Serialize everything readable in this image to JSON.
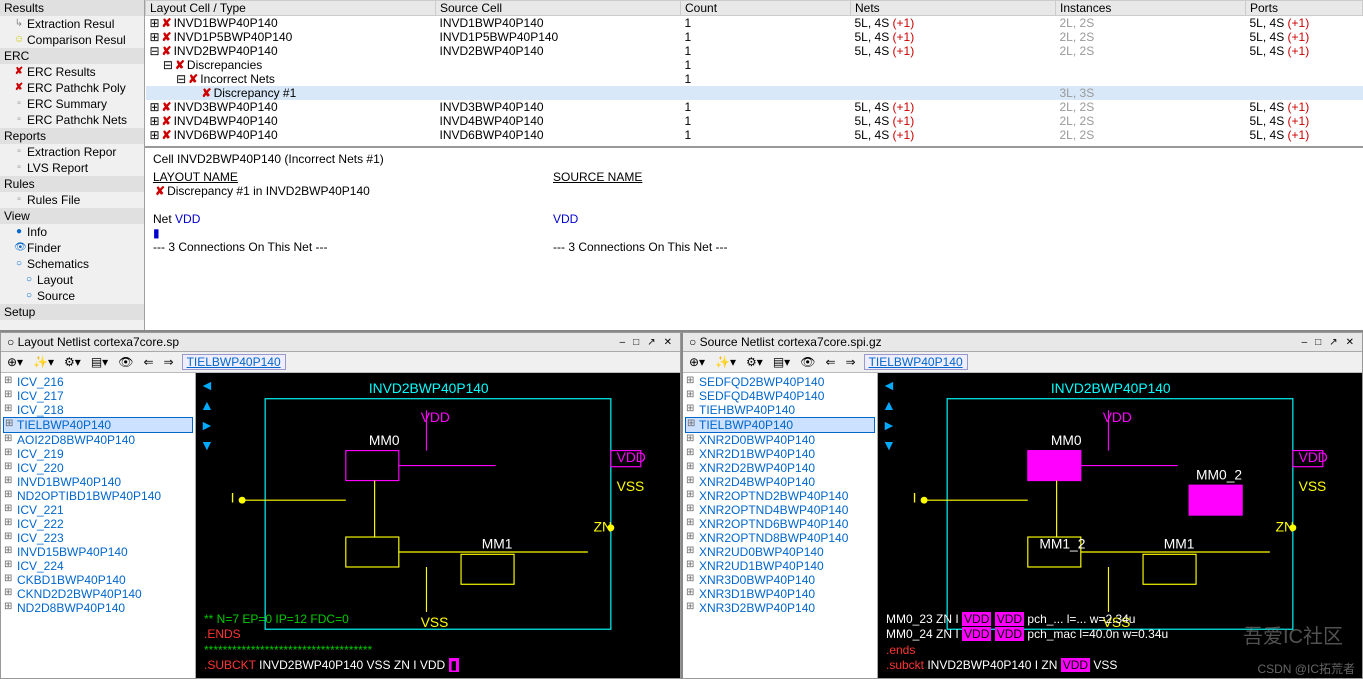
{
  "sidebar": {
    "sections": [
      {
        "label": "Results",
        "items": [
          {
            "icon": "↳",
            "cls": "gray",
            "label": "Extraction Resul"
          },
          {
            "icon": "☺",
            "cls": "yellow",
            "label": "Comparison Resul"
          }
        ]
      },
      {
        "label": "ERC",
        "items": [
          {
            "icon": "✘",
            "cls": "red",
            "label": "ERC Results"
          },
          {
            "icon": "✘",
            "cls": "red",
            "label": "ERC Pathchk Poly"
          },
          {
            "icon": "▫",
            "cls": "gray",
            "label": "ERC Summary"
          },
          {
            "icon": "▫",
            "cls": "gray",
            "label": "ERC Pathchk Nets"
          }
        ]
      },
      {
        "label": "Reports",
        "items": [
          {
            "icon": "▫",
            "cls": "gray",
            "label": "Extraction Repor"
          },
          {
            "icon": "▫",
            "cls": "gray",
            "label": "LVS Report"
          }
        ]
      },
      {
        "label": "Rules",
        "items": [
          {
            "icon": "▫",
            "cls": "gray",
            "label": "Rules File"
          }
        ]
      },
      {
        "label": "View",
        "items": [
          {
            "icon": "●",
            "cls": "blue",
            "label": "Info"
          },
          {
            "icon": "👁",
            "cls": "blue",
            "label": "Finder"
          },
          {
            "icon": "○",
            "cls": "blue",
            "label": "Schematics",
            "sub": [
              {
                "icon": "○",
                "cls": "blue",
                "label": "Layout"
              },
              {
                "icon": "○",
                "cls": "blue",
                "label": "Source"
              }
            ]
          }
        ]
      },
      {
        "label": "Setup",
        "items": []
      }
    ]
  },
  "table": {
    "cols": [
      "Layout Cell / Type",
      "Source Cell",
      "Count",
      "Nets",
      "Instances",
      "Ports"
    ],
    "widths": [
      "290px",
      "245px",
      "170px",
      "205px",
      "190px",
      "auto"
    ],
    "rows": [
      {
        "ind": 0,
        "exp": "⊞",
        "mark": "✘",
        "c0": "INVD1BWP40P140",
        "c1": "INVD1BWP40P140",
        "c2": "1",
        "nets": "5L, 4S",
        "np": "(+1)",
        "inst": "2L, 2S",
        "ip": "",
        "ports": "5L, 4S",
        "pp": "(+1)"
      },
      {
        "ind": 0,
        "exp": "⊞",
        "mark": "✘",
        "c0": "INVD1P5BWP40P140",
        "c1": "INVD1P5BWP40P140",
        "c2": "1",
        "nets": "5L, 4S",
        "np": "(+1)",
        "inst": "2L, 2S",
        "ip": "",
        "ports": "5L, 4S",
        "pp": "(+1)"
      },
      {
        "ind": 0,
        "exp": "⊟",
        "mark": "✘",
        "c0": "INVD2BWP40P140",
        "c1": "INVD2BWP40P140",
        "c2": "1",
        "nets": "5L, 4S",
        "np": "(+1)",
        "inst": "2L, 2S",
        "ip": "",
        "ports": "5L, 4S",
        "pp": "(+1)"
      },
      {
        "ind": 1,
        "exp": "⊟",
        "mark": "✘",
        "c0": "Discrepancies",
        "c1": "",
        "c2": "1",
        "nets": "",
        "np": "",
        "inst": "",
        "ip": "",
        "ports": "",
        "pp": ""
      },
      {
        "ind": 2,
        "exp": "⊟",
        "mark": "✘",
        "c0": "Incorrect Nets",
        "c1": "",
        "c2": "1",
        "nets": "",
        "np": "",
        "inst": "",
        "ip": "",
        "ports": "",
        "pp": ""
      },
      {
        "ind": 3,
        "exp": "",
        "mark": "✘",
        "c0": "Discrepancy #1",
        "c1": "",
        "c2": "",
        "nets": "",
        "np": "",
        "inst": "3L, 3S",
        "ip": "",
        "ports": "",
        "pp": "",
        "sel": true
      },
      {
        "ind": 0,
        "exp": "⊞",
        "mark": "✘",
        "c0": "INVD3BWP40P140",
        "c1": "INVD3BWP40P140",
        "c2": "1",
        "nets": "5L, 4S",
        "np": "(+1)",
        "inst": "2L, 2S",
        "ip": "",
        "ports": "5L, 4S",
        "pp": "(+1)"
      },
      {
        "ind": 0,
        "exp": "⊞",
        "mark": "✘",
        "c0": "INVD4BWP40P140",
        "c1": "INVD4BWP40P140",
        "c2": "1",
        "nets": "5L, 4S",
        "np": "(+1)",
        "inst": "2L, 2S",
        "ip": "",
        "ports": "5L, 4S",
        "pp": "(+1)"
      },
      {
        "ind": 0,
        "exp": "⊞",
        "mark": "✘",
        "c0": "INVD6BWP40P140",
        "c1": "INVD6BWP40P140",
        "c2": "1",
        "nets": "5L, 4S",
        "np": "(+1)",
        "inst": "2L, 2S",
        "ip": "",
        "ports": "5L, 4S",
        "pp": "(+1)"
      }
    ]
  },
  "detail": {
    "header": "Cell INVD2BWP40P140 (Incorrect Nets #1)",
    "left_label": "LAYOUT NAME",
    "right_label": "SOURCE NAME",
    "disc_line": "Discrepancy #1 in INVD2BWP40P140",
    "net_label": "Net",
    "net_name": "VDD",
    "conn_left": "--- 3 Connections On This Net ---",
    "conn_right": "--- 3 Connections On This Net ---"
  },
  "panes": {
    "left": {
      "title": "Layout Netlist cortexa7core.sp",
      "cell": "TIELBWP40P140",
      "tree": [
        "ICV_216",
        "ICV_217",
        "ICV_218",
        "TIELBWP40P140",
        "AOI22D8BWP40P140",
        "ICV_219",
        "ICV_220",
        "INVD1BWP40P140",
        "ND2OPTIBD1BWP40P140",
        "ICV_221",
        "ICV_222",
        "ICV_223",
        "INVD15BWP40P140",
        "ICV_224",
        "CKBD1BWP40P140",
        "CKND2D2BWP40P140",
        "ND2D8BWP40P140"
      ],
      "hl": 3,
      "schem_title": "INVD2BWP40P140",
      "netlist": [
        {
          "cls": "nl-green",
          "t": "** N=7 EP=0 IP=12 FDC=0"
        },
        {
          "cls": "nl-red",
          "t": ".ENDS"
        },
        {
          "cls": "nl-green",
          "t": "************************************"
        },
        {
          "cls": "nl-red",
          "t": ".SUBCKT",
          "after": " INVD2BWP40P140 VSS ZN I VDD ",
          "mag": "▮"
        }
      ]
    },
    "right": {
      "title": "Source Netlist cortexa7core.spi.gz",
      "cell": "TIELBWP40P140",
      "tree": [
        "SEDFQD2BWP40P140",
        "SEDFQD4BWP40P140",
        "TIEHBWP40P140",
        "TIELBWP40P140",
        "XNR2D0BWP40P140",
        "XNR2D1BWP40P140",
        "XNR2D2BWP40P140",
        "XNR2D4BWP40P140",
        "XNR2OPTND2BWP40P140",
        "XNR2OPTND4BWP40P140",
        "XNR2OPTND6BWP40P140",
        "XNR2OPTND8BWP40P140",
        "XNR2UD0BWP40P140",
        "XNR2UD1BWP40P140",
        "XNR3D0BWP40P140",
        "XNR3D1BWP40P140",
        "XNR3D2BWP40P140"
      ],
      "hl": 3,
      "schem_title": "INVD2BWP40P140",
      "netlist": [
        {
          "cls": "nl-white",
          "t": "MM0_23 ZN I ",
          "mag2": [
            "VDD",
            "VDD"
          ],
          "after": " pch_... l=... w=2.34u"
        },
        {
          "cls": "nl-white",
          "t": "MM0_24 ZN I ",
          "mag2": [
            "VDD",
            "VDD"
          ],
          "after": " pch_mac l=40.0n w=0.34u"
        },
        {
          "cls": "nl-red",
          "t": ".ends"
        },
        {
          "cls": "nl-red",
          "t": ".subckt",
          "after": " INVD2BWP40P140 I ZN ",
          "mag": "VDD",
          "after2": " VSS"
        }
      ]
    }
  },
  "watermark": "吾爱IC社区",
  "attrib": "CSDN @IC拓荒者",
  "colors": {
    "schematic_bg": "#000000",
    "wire_cyan": "#00ffff",
    "wire_yellow": "#ffff00",
    "wire_magenta": "#ff00ff"
  }
}
